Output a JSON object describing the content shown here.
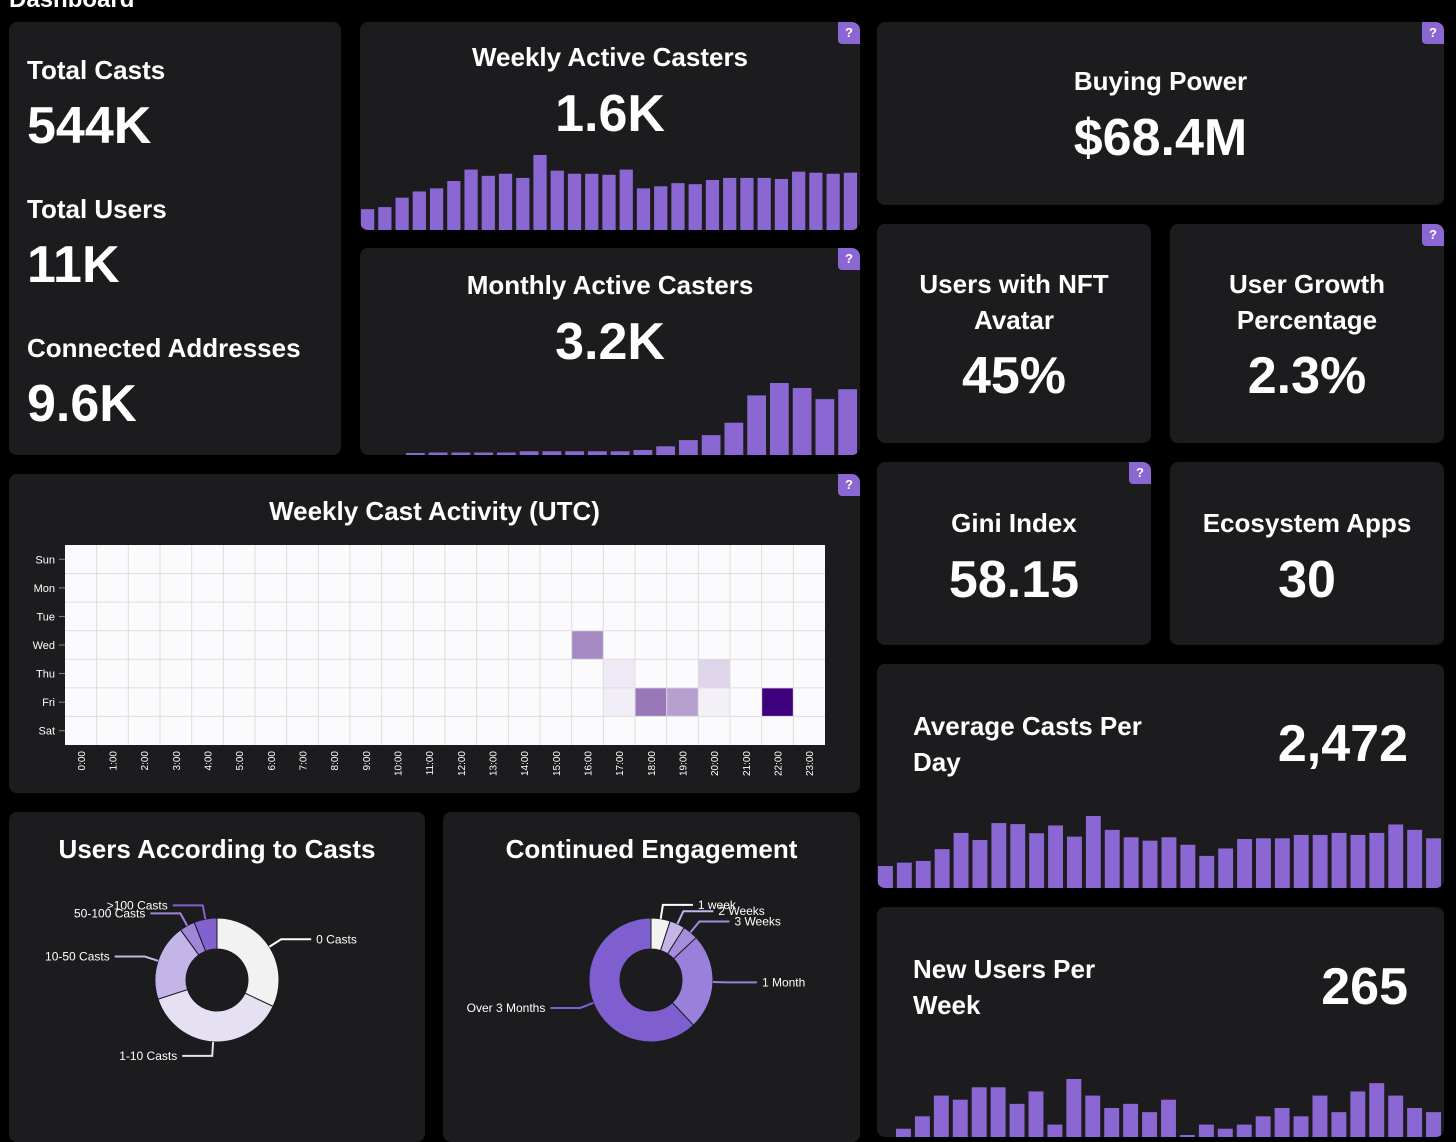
{
  "page_title": "Dashboard",
  "accent": "#8a67d3",
  "help_label": "?",
  "totals": [
    {
      "label": "Total Casts",
      "value": "544K"
    },
    {
      "label": "Total Users",
      "value": "11K"
    },
    {
      "label": "Connected Addresses",
      "value": "9.6K"
    }
  ],
  "weekly_active": {
    "label": "Weekly Active Casters",
    "value": "1.6K",
    "bars": [
      20,
      22,
      31,
      37,
      40,
      47,
      58,
      52,
      54,
      50,
      72,
      57,
      54,
      54,
      53,
      58,
      40,
      42,
      45,
      44,
      48,
      50,
      50,
      50,
      49,
      56,
      55,
      54,
      55
    ]
  },
  "monthly_active": {
    "label": "Monthly Active Casters",
    "value": "3.2K",
    "bars": [
      1,
      2,
      2,
      2,
      2,
      3,
      3,
      3,
      3,
      3,
      4,
      7,
      12,
      16,
      26,
      48,
      58,
      54,
      45,
      53
    ]
  },
  "buying_power": {
    "label": "Buying Power",
    "value": "$68.4M"
  },
  "nft_avatar": {
    "label": "Users with NFT Avatar",
    "value": "45%"
  },
  "user_growth": {
    "label": "User Growth Percentage",
    "value": "2.3%"
  },
  "gini": {
    "label": "Gini Index",
    "value": "58.15"
  },
  "ecosystem": {
    "label": "Ecosystem Apps",
    "value": "30"
  },
  "avg_casts": {
    "label": "Average Casts Per Day",
    "value": "2,472",
    "bars": [
      65,
      75,
      80,
      115,
      163,
      142,
      192,
      189,
      162,
      185,
      152,
      213,
      172,
      150,
      140,
      150,
      128,
      95,
      117,
      145,
      147,
      147,
      157,
      157,
      163,
      157,
      163,
      188,
      172,
      147
    ]
  },
  "new_users": {
    "label": "New Users Per Week",
    "value": "265",
    "bars": [
      2,
      5,
      10,
      9,
      12,
      12,
      8,
      11,
      3,
      14,
      10,
      7,
      8,
      6,
      9,
      0,
      3,
      2,
      3,
      5,
      7,
      5,
      10,
      6,
      11,
      13,
      10,
      7,
      6
    ]
  },
  "chart_data": [
    {
      "type": "heatmap",
      "title": "Weekly Cast Activity (UTC)",
      "rows": [
        "Sun",
        "Mon",
        "Tue",
        "Wed",
        "Thu",
        "Fri",
        "Sat"
      ],
      "columns": [
        "0:00",
        "1:00",
        "2:00",
        "3:00",
        "4:00",
        "5:00",
        "6:00",
        "7:00",
        "8:00",
        "9:00",
        "10:00",
        "11:00",
        "12:00",
        "13:00",
        "14:00",
        "15:00",
        "16:00",
        "17:00",
        "18:00",
        "19:00",
        "20:00",
        "21:00",
        "22:00",
        "23:00"
      ],
      "cells": [
        {
          "row": "Wed",
          "col": "16:00",
          "value": 0.45
        },
        {
          "row": "Thu",
          "col": "17:00",
          "value": 0.07
        },
        {
          "row": "Thu",
          "col": "20:00",
          "value": 0.15
        },
        {
          "row": "Fri",
          "col": "17:00",
          "value": 0.05
        },
        {
          "row": "Fri",
          "col": "18:00",
          "value": 0.52
        },
        {
          "row": "Fri",
          "col": "19:00",
          "value": 0.36
        },
        {
          "row": "Fri",
          "col": "20:00",
          "value": 0.04
        },
        {
          "row": "Fri",
          "col": "22:00",
          "value": 1.0
        }
      ],
      "color_low": "#fbfafd",
      "color_high": "#3f007d"
    },
    {
      "type": "pie",
      "title": "Users According to Casts",
      "slices": [
        {
          "label": "0 Casts",
          "value": 32,
          "color": "#f2f2f2"
        },
        {
          "label": "1-10 Casts",
          "value": 38,
          "color": "#e6e0f3"
        },
        {
          "label": "10-50 Casts",
          "value": 20,
          "color": "#c4b5e8"
        },
        {
          "label": "50-100 Casts",
          "value": 4,
          "color": "#9f86d9"
        },
        {
          "label": ">100 Casts",
          "value": 6,
          "color": "#8262cf"
        }
      ]
    },
    {
      "type": "pie",
      "title": "Continued Engagement",
      "slices": [
        {
          "label": "1 week",
          "value": 5,
          "color": "#f2f2f2"
        },
        {
          "label": "2 Weeks",
          "value": 4,
          "color": "#c4b5e8"
        },
        {
          "label": "3 Weeks",
          "value": 4,
          "color": "#a68ddc"
        },
        {
          "label": "1 Month",
          "value": 25,
          "color": "#9a80da"
        },
        {
          "label": "Over 3 Months",
          "value": 62,
          "color": "#7f5fd0"
        }
      ]
    }
  ]
}
